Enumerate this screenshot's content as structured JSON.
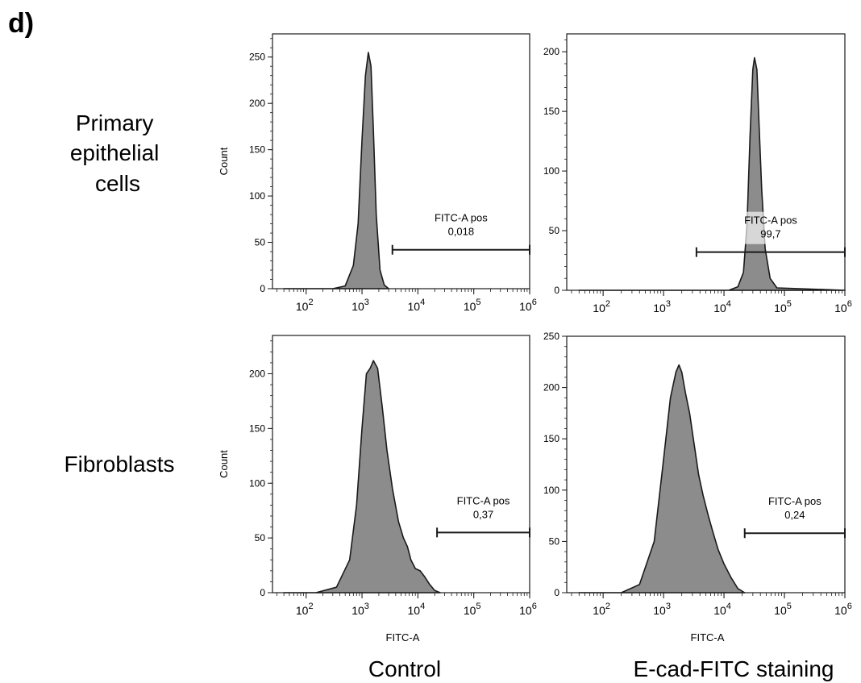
{
  "figure": {
    "panel_label": "d)",
    "row_labels": [
      [
        "Primary",
        "epithelial",
        "cells"
      ],
      [
        "Fibroblasts"
      ]
    ],
    "column_labels": [
      "Control",
      "E-cad-FITC staining"
    ]
  },
  "colors": {
    "fill": "#8c8c8c",
    "stroke": "#1a1a1a",
    "axis": "#1a1a1a"
  },
  "chart_data": [
    {
      "type": "area",
      "row": "Primary epithelial cells",
      "column": "Control",
      "xscale": "log",
      "xlim": [
        25,
        1000000
      ],
      "ylim": [
        0,
        275
      ],
      "xlabel": "",
      "ylabel": "Count",
      "xticks": [
        "10^2",
        "10^3",
        "10^4",
        "10^5",
        "10^6"
      ],
      "yticks": [
        0,
        50,
        100,
        150,
        200,
        250
      ],
      "series": [
        {
          "x": [
            40,
            300,
            500,
            700,
            850,
            1000,
            1150,
            1300,
            1450,
            1600,
            1800,
            2100,
            2500,
            3000
          ],
          "y": [
            0,
            0,
            3,
            25,
            70,
            160,
            230,
            255,
            240,
            170,
            80,
            20,
            4,
            0
          ]
        }
      ],
      "gate": {
        "name": "FITC-A pos",
        "value": "0,018",
        "x_range": [
          3500,
          1000000
        ],
        "y": 42
      }
    },
    {
      "type": "area",
      "row": "Primary epithelial cells",
      "column": "E-cad-FITC staining",
      "xscale": "log",
      "xlim": [
        25,
        1000000
      ],
      "ylim": [
        0,
        215
      ],
      "xlabel": "",
      "ylabel": "",
      "xticks": [
        "10^2",
        "10^3",
        "10^4",
        "10^5",
        "10^6"
      ],
      "yticks": [
        0,
        50,
        100,
        150,
        200
      ],
      "series": [
        {
          "x": [
            40,
            12000,
            17000,
            21000,
            24000,
            27000,
            30000,
            32000,
            35000,
            38000,
            42000,
            48000,
            58000,
            75000,
            1000000
          ],
          "y": [
            0,
            0,
            3,
            15,
            55,
            130,
            185,
            195,
            185,
            140,
            85,
            35,
            10,
            2,
            0
          ]
        }
      ],
      "gate": {
        "name": "FITC-A pos",
        "value": "99,7",
        "x_range": [
          3500,
          1000000
        ],
        "y": 32
      }
    },
    {
      "type": "area",
      "row": "Fibroblasts",
      "column": "Control",
      "xscale": "log",
      "xlim": [
        25,
        1000000
      ],
      "ylim": [
        0,
        235
      ],
      "xlabel": "FITC-A",
      "ylabel": "Count",
      "xticks": [
        "10^2",
        "10^3",
        "10^4",
        "10^5",
        "10^6"
      ],
      "yticks": [
        0,
        50,
        100,
        150,
        200
      ],
      "series": [
        {
          "x": [
            40,
            150,
            350,
            600,
            800,
            1000,
            1200,
            1400,
            1600,
            1900,
            2300,
            2800,
            3500,
            4500,
            5500,
            6500,
            7500,
            9000,
            11000,
            13000,
            16000,
            20000,
            25000
          ],
          "y": [
            0,
            0,
            5,
            30,
            80,
            150,
            200,
            205,
            212,
            205,
            170,
            130,
            95,
            65,
            50,
            42,
            30,
            22,
            20,
            15,
            8,
            2,
            0
          ]
        }
      ],
      "gate": {
        "name": "FITC-A pos",
        "value": "0,37",
        "x_range": [
          22000,
          1000000
        ],
        "y": 55
      }
    },
    {
      "type": "area",
      "row": "Fibroblasts",
      "column": "E-cad-FITC staining",
      "xscale": "log",
      "xlim": [
        25,
        1000000
      ],
      "ylim": [
        0,
        250
      ],
      "xlabel": "FITC-A",
      "ylabel": "",
      "xticks": [
        "10^2",
        "10^3",
        "10^4",
        "10^5",
        "10^6"
      ],
      "yticks": [
        0,
        50,
        100,
        150,
        200,
        250
      ],
      "series": [
        {
          "x": [
            40,
            200,
            400,
            700,
            1000,
            1300,
            1600,
            1800,
            2000,
            2300,
            2700,
            3200,
            3800,
            4500,
            5500,
            6500,
            8000,
            10000,
            13000,
            17000,
            22000
          ],
          "y": [
            0,
            0,
            8,
            50,
            130,
            190,
            215,
            222,
            215,
            195,
            175,
            145,
            115,
            95,
            75,
            60,
            42,
            28,
            15,
            4,
            0
          ]
        }
      ],
      "gate": {
        "name": "FITC-A pos",
        "value": "0,24",
        "x_range": [
          22000,
          1000000
        ],
        "y": 58
      }
    }
  ]
}
